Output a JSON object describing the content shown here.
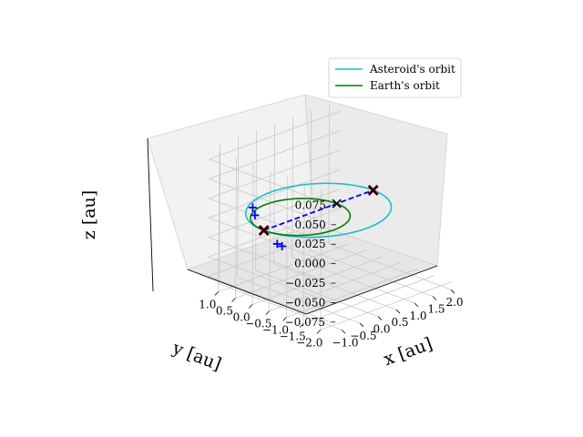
{
  "chart_data": {
    "type": "line",
    "projection": "3d",
    "xlabel": "x [au]",
    "ylabel": "y [au]",
    "zlabel": "z [au]",
    "xticks": [
      "−1.0",
      "−0.5",
      "0.0",
      "0.5",
      "1.0",
      "1.5",
      "2.0"
    ],
    "yticks": [
      "1.0",
      "0.5",
      "0.0",
      "−0.5",
      "−1.0",
      "−1.5",
      "−2.0"
    ],
    "zticks": [
      "0.075",
      "0.050",
      "0.025",
      "0.000",
      "−0.025",
      "−0.050",
      "−0.075"
    ],
    "xlim": [
      -1.3,
      2.3
    ],
    "ylim": [
      -2.3,
      1.3
    ],
    "zlim": [
      -0.09,
      0.09
    ],
    "grid": true,
    "legend_position": "upper-right",
    "series": [
      {
        "name": "Asteroid's orbit",
        "color": "#17becf",
        "orbit": {
          "a": 1.5,
          "e": 0.333,
          "center_x": 0.5,
          "center_y": 0.0,
          "z": 0.0
        }
      },
      {
        "name": "Earth's orbit",
        "color": "#008000",
        "orbit": {
          "a": 1.0,
          "e": 0.0,
          "center_x": 0.0,
          "center_y": 0.0,
          "z": 0.0
        }
      }
    ],
    "transfer_line": {
      "color": "#0000ff",
      "points": [
        [
          -1.0,
          0.0,
          0.0
        ],
        [
          2.0,
          0.0,
          0.0
        ]
      ]
    },
    "x_markers": {
      "color": "#000000",
      "points": [
        [
          -1.0,
          0.0,
          0.0
        ],
        [
          1.0,
          0.0,
          0.0
        ],
        [
          2.0,
          0.0,
          0.0
        ]
      ]
    },
    "red_markers": {
      "color": "#8b0000",
      "points": [
        [
          -1.0,
          0.0,
          0.0
        ],
        [
          2.0,
          0.0,
          0.0
        ]
      ]
    },
    "plus_markers": {
      "color": "#0000ff",
      "points": [
        [
          -0.89,
          0.45,
          0.02
        ],
        [
          -0.94,
          0.33,
          0.013
        ],
        [
          -0.94,
          -0.33,
          -0.013
        ],
        [
          -0.9,
          -0.43,
          -0.015
        ]
      ]
    }
  }
}
